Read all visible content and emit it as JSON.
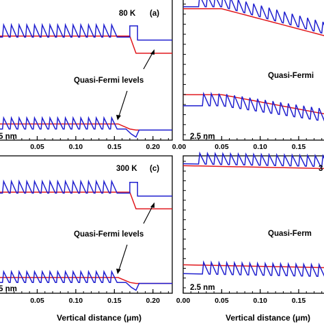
{
  "colors": {
    "red": "#e0161b",
    "blue": "#1f1fcf",
    "black": "#000000"
  },
  "chart_data": [
    {
      "panel": "top-left",
      "type": "line",
      "annotation_temp": "80 K",
      "annotation_label": "(a)",
      "annotation_quasi": "Quasi-Fermi levels",
      "annotation_size": "5 nm",
      "xlim": [
        0.0,
        0.225
      ],
      "x_ticks": [
        0.05,
        0.1,
        0.15,
        0.2
      ],
      "x_tick_labels": [
        "0.05",
        "0.10",
        "0.15",
        "0.20"
      ],
      "xlabel": "",
      "quasi_fermi_levels": [
        {
          "color": "red",
          "x": [
            0.0,
            0.17,
            0.178,
            0.225
          ],
          "y": [
            5.15,
            5.15,
            4.3,
            4.3
          ]
        },
        {
          "color": "red",
          "x": [
            0.0,
            0.155,
            0.17,
            0.178,
            0.225
          ],
          "y": [
            0.8,
            0.8,
            0.55,
            0.5,
            0.5
          ]
        }
      ],
      "band_edges": [
        {
          "color": "blue",
          "well_start": 0.005,
          "well_period": 0.01,
          "well_count": 15,
          "base": 5.1,
          "spike": 0.6,
          "x_end": 0.225,
          "tail_y": 4.95
        },
        {
          "color": "blue",
          "well_start": 0.005,
          "well_period": 0.01,
          "well_count": 15,
          "base": 0.55,
          "spike": 0.55,
          "x_end": 0.225,
          "tail_y": 0.65
        }
      ]
    },
    {
      "panel": "top-right",
      "type": "line",
      "annotation_temp": "",
      "annotation_label": "",
      "annotation_quasi": "Quasi-Fermi",
      "annotation_size": "2.5 nm",
      "xlim": [
        0.0,
        0.19
      ],
      "x_ticks": [
        0.05,
        0.1,
        0.15
      ],
      "x_tick_labels": [
        "0.05",
        "0.10",
        "0.15"
      ],
      "x_tick_label_extra": "0.00",
      "xlabel": ""
    },
    {
      "panel": "bottom-left",
      "type": "line",
      "annotation_temp": "300 K",
      "annotation_label": "(c)",
      "annotation_quasi": "Quasi-Fermi levels",
      "annotation_size": "5 nm",
      "xlim": [
        0.0,
        0.225
      ],
      "x_ticks": [
        0.05,
        0.1,
        0.15,
        0.2
      ],
      "x_tick_labels": [
        "0.05",
        "0.10",
        "0.15",
        "0.20"
      ],
      "xlabel": "Vertical distance (μm)"
    },
    {
      "panel": "bottom-right",
      "type": "line",
      "annotation_temp": "3",
      "annotation_label": "",
      "annotation_quasi": "Quasi-Ferm",
      "annotation_size": "2.5 nm",
      "xlim": [
        0.0,
        0.19
      ],
      "x_ticks": [
        0.0,
        0.05,
        0.1,
        0.15
      ],
      "x_tick_labels": [
        "0.00",
        "0.05",
        "0.10",
        "0.15"
      ],
      "xlabel": "Vertical distance (μm)"
    }
  ]
}
